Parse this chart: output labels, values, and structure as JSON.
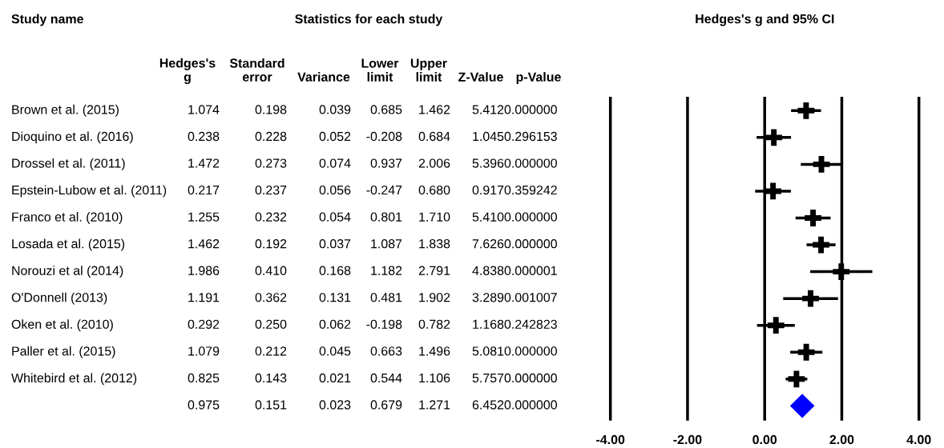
{
  "chart_data": [
    {
      "type": "other",
      "title": "Statistics for each study",
      "ylabel": "Study name",
      "categories": [
        "Hedges's\ng",
        "Standard\nerror",
        "Variance",
        "Lower\nlimit",
        "Upper\nlimit",
        "Z-Value",
        "p-Value"
      ],
      "y_categories": [
        "Brown et al. (2015)",
        "Dioquino et al. (2016)",
        "Drossel et al. (2011)",
        "Epstein-Lubow et al. (2011)",
        "Franco et al. (2010)",
        "Losada et al. (2015)",
        "Norouzi et al (2014)",
        "O'Donnell (2013)",
        "Oken et al. (2010)",
        "Paller et al. (2015)",
        "Whitebird et al. (2012)",
        null
      ],
      "cell_labels": [
        [
          "1.074",
          "0.198",
          "0.039",
          "0.685",
          "1.462",
          "5.412",
          "0.000000"
        ],
        [
          "0.238",
          "0.228",
          "0.052",
          "-0.208",
          "0.684",
          "1.045",
          "0.296153"
        ],
        [
          "1.472",
          "0.273",
          "0.074",
          "0.937",
          "2.006",
          "5.396",
          "0.000000"
        ],
        [
          "0.217",
          "0.237",
          "0.056",
          "-0.247",
          "0.680",
          "0.917",
          "0.359242"
        ],
        [
          "1.255",
          "0.232",
          "0.054",
          "0.801",
          "1.710",
          "5.410",
          "0.000000"
        ],
        [
          "1.462",
          "0.192",
          "0.037",
          "1.087",
          "1.838",
          "7.626",
          "0.000000"
        ],
        [
          "1.986",
          "0.410",
          "0.168",
          "1.182",
          "2.791",
          "4.838",
          "0.000001"
        ],
        [
          "1.191",
          "0.362",
          "0.131",
          "0.481",
          "1.902",
          "3.289",
          "0.001007"
        ],
        [
          "0.292",
          "0.250",
          "0.062",
          "-0.198",
          "0.782",
          "1.168",
          "0.242823"
        ],
        [
          "1.079",
          "0.212",
          "0.045",
          "0.663",
          "1.496",
          "5.081",
          "0.000000"
        ],
        [
          "0.825",
          "0.143",
          "0.021",
          "0.544",
          "1.106",
          "5.757",
          "0.000000"
        ],
        [
          "0.975",
          "0.151",
          "0.023",
          "0.679",
          "1.271",
          "6.452",
          "0.000000"
        ]
      ]
    },
    {
      "type": "scatter",
      "title": "Hedges's g and 95% CI",
      "orientation": "horizontal",
      "categories": [
        null,
        null,
        null,
        null,
        null,
        null,
        null,
        null,
        null,
        null,
        null,
        null
      ],
      "series": [
        {
          "color": "#000000",
          "marker": "cross",
          "values": [
            1.074,
            0.238,
            1.472,
            0.217,
            1.255,
            1.462,
            1.986,
            1.191,
            0.292,
            1.079,
            0.825,
            null
          ],
          "errors": [
            [
              0.685,
              1.462
            ],
            [
              -0.208,
              0.684
            ],
            [
              0.937,
              2.006
            ],
            [
              -0.247,
              0.68
            ],
            [
              0.801,
              1.71
            ],
            [
              1.087,
              1.838
            ],
            [
              1.182,
              2.791
            ],
            [
              0.481,
              1.902
            ],
            [
              -0.198,
              0.782
            ],
            [
              0.663,
              1.496
            ],
            [
              0.544,
              1.106
            ],
            null
          ]
        },
        {
          "color": "#0000ff",
          "marker": "diamond",
          "values": [
            null,
            null,
            null,
            null,
            null,
            null,
            null,
            null,
            null,
            null,
            null,
            0.975
          ],
          "errors": [
            null,
            null,
            null,
            null,
            null,
            null,
            null,
            null,
            null,
            null,
            null,
            [
              0.679,
              1.271
            ]
          ]
        }
      ],
      "xlim": [
        -4,
        4
      ],
      "xticks": [
        {
          "value": -4,
          "label": "-4.00"
        },
        {
          "value": -2,
          "label": "-2.00"
        },
        {
          "value": 0,
          "label": "0.00"
        },
        {
          "value": 2,
          "label": "2.00"
        },
        {
          "value": 4,
          "label": "4.00"
        }
      ],
      "grid": "x",
      "tick_labels": "x"
    }
  ]
}
